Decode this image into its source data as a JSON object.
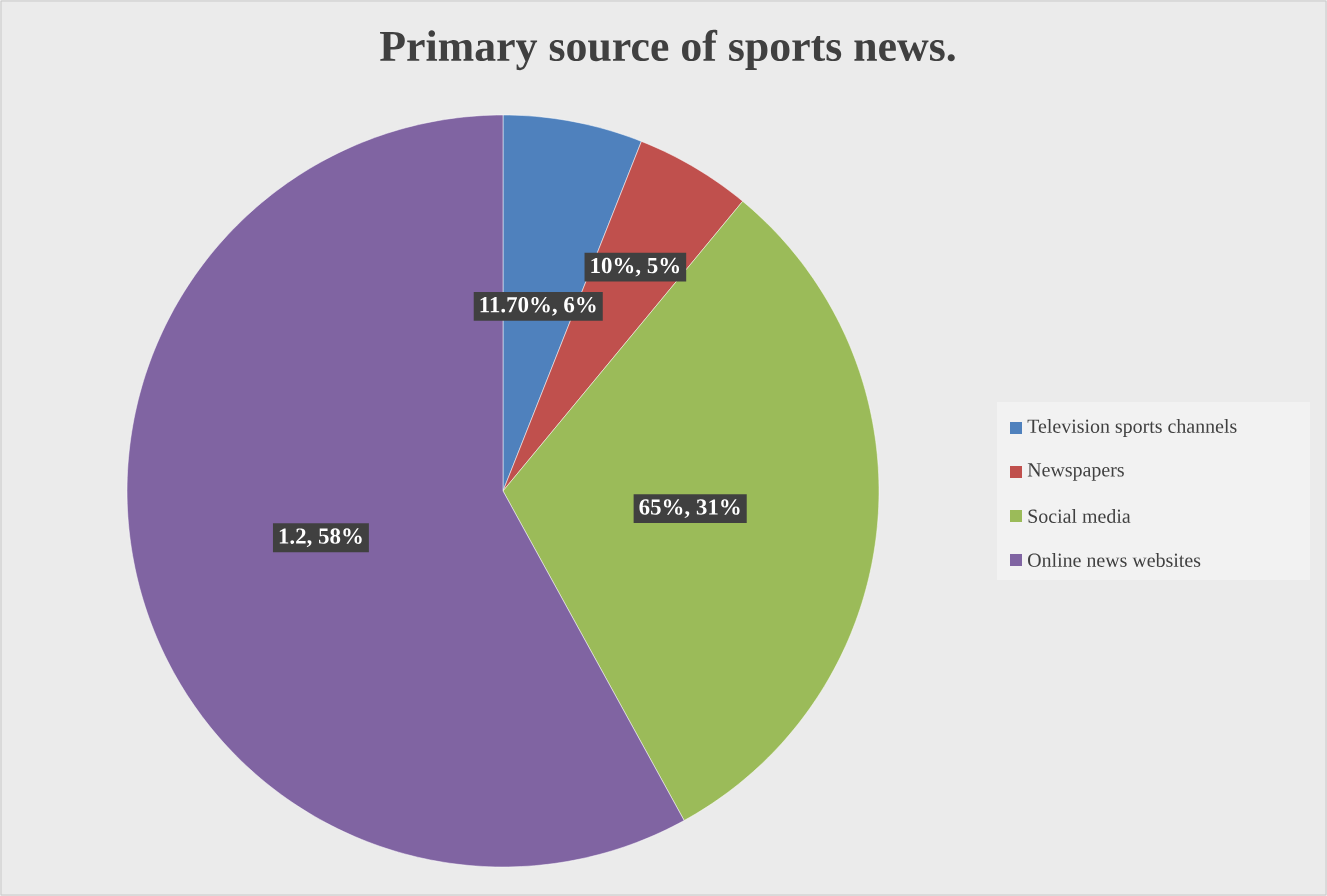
{
  "chart_data": {
    "type": "pie",
    "title": "Primary source of sports news.",
    "categories": [
      "Television sports channels",
      "Newspapers",
      "Social media",
      "Online news websites"
    ],
    "values": [
      6,
      5,
      31,
      58
    ],
    "colors": [
      "#4f81bd",
      "#c0504d",
      "#9bbb59",
      "#8064a2"
    ],
    "value_labels": [
      "11.70%, 6%",
      "10%, 5%",
      "65%, 31%",
      "1.2, 58%"
    ],
    "legend": "right"
  }
}
